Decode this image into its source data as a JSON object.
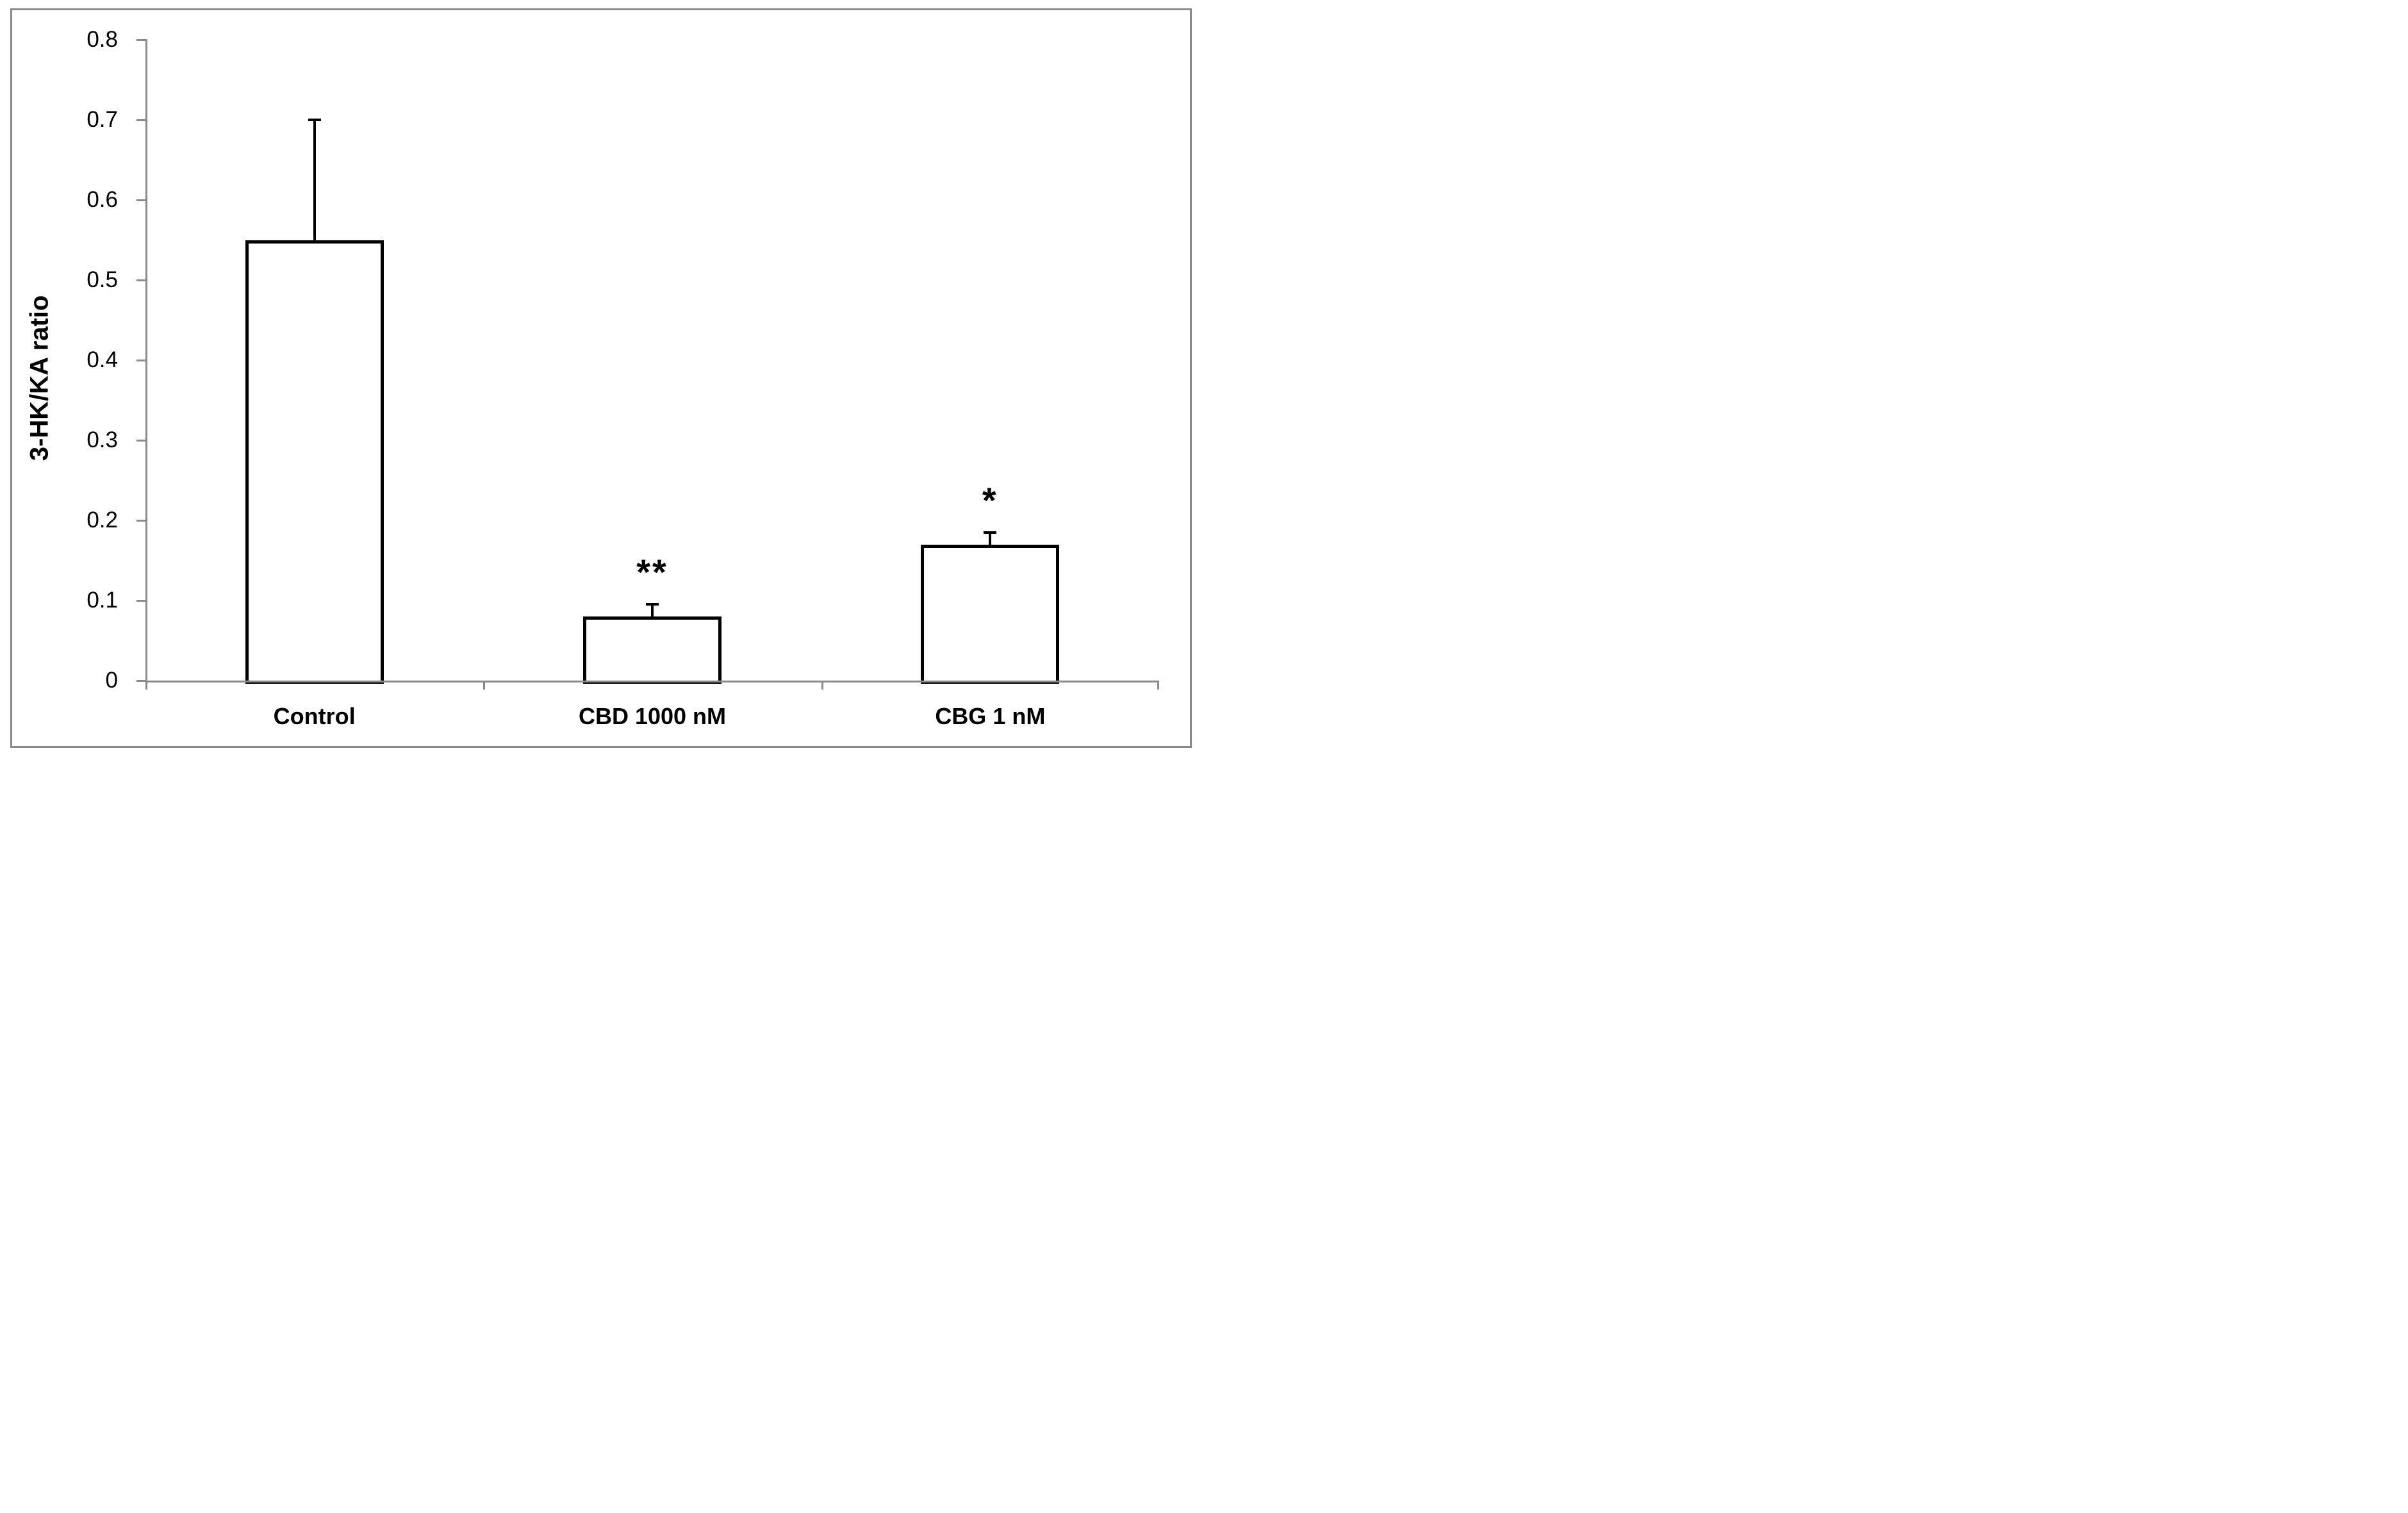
{
  "figure": {
    "background": "#ffffff",
    "border_color": "#8a8a8a"
  },
  "chart_data": {
    "type": "bar",
    "title": "",
    "xlabel": "",
    "ylabel": "3-HK/KA ratio",
    "ylim": [
      0,
      0.8
    ],
    "grid": false,
    "legend": false,
    "axis_color": "#8a8a8a",
    "bar_fill": "#ffffff",
    "bar_outline": "#000000",
    "error_color": "#000000",
    "text_color": "#000000",
    "yticks": [
      {
        "value": 0.8,
        "label": "0.8"
      },
      {
        "value": 0.7,
        "label": "0.7"
      },
      {
        "value": 0.6,
        "label": "0.6"
      },
      {
        "value": 0.5,
        "label": "0.5"
      },
      {
        "value": 0.4,
        "label": "0.4"
      },
      {
        "value": 0.3,
        "label": "0.3"
      },
      {
        "value": 0.2,
        "label": "0.2"
      },
      {
        "value": 0.1,
        "label": "0.1"
      },
      {
        "value": 0.0,
        "label": "0"
      }
    ],
    "categories": [
      "Control",
      "CBD 1000 nM",
      "CBG 1 nM"
    ],
    "series": [
      {
        "name": "3-HK/KA ratio",
        "values": [
          0.55,
          0.08,
          0.17
        ],
        "errors_plus": [
          0.15,
          0.015,
          0.015
        ],
        "significance": [
          "",
          "**",
          "*"
        ]
      }
    ]
  }
}
